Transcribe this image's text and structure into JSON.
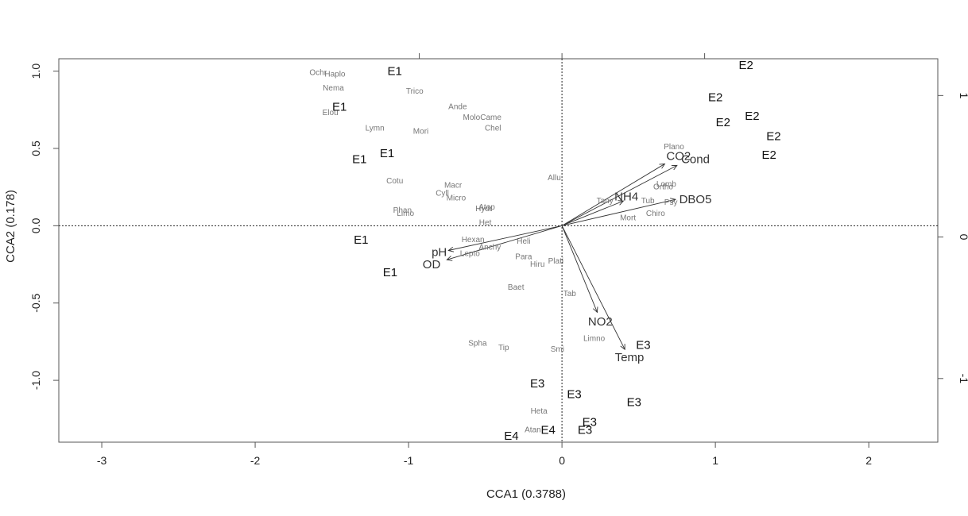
{
  "chart_data": {
    "type": "scatter",
    "xlabel": "CCA1 (0.3788)",
    "ylabel": "CCA2 (0.178)",
    "xlim": [
      -3.28,
      2.45
    ],
    "ylim": [
      -1.4,
      1.08
    ],
    "xticks": [
      -3,
      -2,
      -1,
      0,
      1,
      2
    ],
    "xtick_labels": [
      "-3",
      "-2",
      "-1",
      "0",
      "1",
      "2"
    ],
    "yticks": [
      -1.0,
      -0.5,
      0.0,
      0.5,
      1.0
    ],
    "ytick_labels": [
      "-1.0",
      "-0.5",
      "0.0",
      "0.5",
      "1.0"
    ],
    "top_axis_ticks": [
      -0.93,
      0,
      0.93
    ],
    "right_axis": {
      "ylim": [
        -1.45,
        1.26
      ],
      "ticks": [
        -1,
        0,
        1
      ],
      "tick_labels": [
        "-1",
        "0",
        "1"
      ]
    },
    "grid": false,
    "species": [
      {
        "label": "Ochr",
        "x": -1.59,
        "y": 0.99
      },
      {
        "label": "Haplo",
        "x": -1.48,
        "y": 0.98
      },
      {
        "label": "Nema",
        "x": -1.49,
        "y": 0.89
      },
      {
        "label": "Trico",
        "x": -0.96,
        "y": 0.87
      },
      {
        "label": "Ande",
        "x": -0.68,
        "y": 0.77
      },
      {
        "label": "MoloCame",
        "x": -0.52,
        "y": 0.7
      },
      {
        "label": "Chel",
        "x": -0.45,
        "y": 0.63
      },
      {
        "label": "Elou",
        "x": -1.51,
        "y": 0.73
      },
      {
        "label": "Lymn",
        "x": -1.22,
        "y": 0.63
      },
      {
        "label": "Mori",
        "x": -0.92,
        "y": 0.61
      },
      {
        "label": "Plano",
        "x": 0.73,
        "y": 0.51
      },
      {
        "label": "Allu",
        "x": -0.05,
        "y": 0.31
      },
      {
        "label": "Cotu",
        "x": -1.09,
        "y": 0.29
      },
      {
        "label": "Macr",
        "x": -0.71,
        "y": 0.26
      },
      {
        "label": "Cyll",
        "x": -0.78,
        "y": 0.21
      },
      {
        "label": "Micro",
        "x": -0.69,
        "y": 0.18
      },
      {
        "label": "Atop",
        "x": -0.49,
        "y": 0.12
      },
      {
        "label": "Hydr",
        "x": -0.51,
        "y": 0.11
      },
      {
        "label": "Lomb",
        "x": 0.68,
        "y": 0.27
      },
      {
        "label": "Ortho",
        "x": 0.66,
        "y": 0.25
      },
      {
        "label": "Tany",
        "x": 0.28,
        "y": 0.16
      },
      {
        "label": "Tub",
        "x": 0.56,
        "y": 0.16
      },
      {
        "label": "Psy",
        "x": 0.71,
        "y": 0.15
      },
      {
        "label": "Chiro",
        "x": 0.61,
        "y": 0.08
      },
      {
        "label": "Mort",
        "x": 0.43,
        "y": 0.05
      },
      {
        "label": "Phan",
        "x": -1.04,
        "y": 0.1
      },
      {
        "label": "Limo",
        "x": -1.02,
        "y": 0.08
      },
      {
        "label": "Het",
        "x": -0.5,
        "y": 0.02
      },
      {
        "label": "Hexan",
        "x": -0.58,
        "y": -0.09
      },
      {
        "label": "Heli",
        "x": -0.25,
        "y": -0.1
      },
      {
        "label": "Anchy",
        "x": -0.47,
        "y": -0.14
      },
      {
        "label": "Lepto",
        "x": -0.6,
        "y": -0.18
      },
      {
        "label": "Para",
        "x": -0.25,
        "y": -0.2
      },
      {
        "label": "Hiru",
        "x": -0.16,
        "y": -0.25
      },
      {
        "label": "Plati",
        "x": -0.04,
        "y": -0.23
      },
      {
        "label": "Baet",
        "x": -0.3,
        "y": -0.4
      },
      {
        "label": "Tab",
        "x": 0.05,
        "y": -0.44
      },
      {
        "label": "Limno",
        "x": 0.21,
        "y": -0.73
      },
      {
        "label": "Spha",
        "x": -0.55,
        "y": -0.76
      },
      {
        "label": "Tip",
        "x": -0.38,
        "y": -0.79
      },
      {
        "label": "Smi",
        "x": -0.03,
        "y": -0.8
      },
      {
        "label": "Heta",
        "x": -0.15,
        "y": -1.2
      },
      {
        "label": "Atan",
        "x": -0.19,
        "y": -1.32
      }
    ],
    "sites": [
      {
        "label": "E1",
        "x": -1.09,
        "y": 1.0
      },
      {
        "label": "E1",
        "x": -1.45,
        "y": 0.77
      },
      {
        "label": "E1",
        "x": -1.14,
        "y": 0.47
      },
      {
        "label": "E1",
        "x": -1.32,
        "y": 0.43
      },
      {
        "label": "E1",
        "x": -1.31,
        "y": -0.09
      },
      {
        "label": "E1",
        "x": -1.12,
        "y": -0.3
      },
      {
        "label": "E2",
        "x": 1.2,
        "y": 1.04
      },
      {
        "label": "E2",
        "x": 1.0,
        "y": 0.83
      },
      {
        "label": "E2",
        "x": 1.05,
        "y": 0.67
      },
      {
        "label": "E2",
        "x": 1.24,
        "y": 0.71
      },
      {
        "label": "E2",
        "x": 1.38,
        "y": 0.58
      },
      {
        "label": "E2",
        "x": 1.35,
        "y": 0.46
      },
      {
        "label": "E3",
        "x": 0.53,
        "y": -0.77
      },
      {
        "label": "E3",
        "x": -0.16,
        "y": -1.02
      },
      {
        "label": "E3",
        "x": 0.08,
        "y": -1.09
      },
      {
        "label": "E3",
        "x": 0.47,
        "y": -1.14
      },
      {
        "label": "E3",
        "x": 0.18,
        "y": -1.27
      },
      {
        "label": "E3",
        "x": 0.15,
        "y": -1.32
      },
      {
        "label": "E4",
        "x": -0.33,
        "y": -1.36
      },
      {
        "label": "E4",
        "x": -0.09,
        "y": -1.32
      }
    ],
    "env_vectors": [
      {
        "label": "CO2",
        "x": 0.67,
        "y": 0.4,
        "lx": 0.76,
        "ly": 0.45
      },
      {
        "label": "Cond",
        "x": 0.75,
        "y": 0.39,
        "lx": 0.87,
        "ly": 0.43
      },
      {
        "label": "NH4",
        "x": 0.4,
        "y": 0.16,
        "lx": 0.42,
        "ly": 0.19
      },
      {
        "label": "DBO5",
        "x": 0.74,
        "y": 0.17,
        "lx": 0.87,
        "ly": 0.17
      },
      {
        "label": "pH",
        "x": -0.74,
        "y": -0.16,
        "lx": -0.8,
        "ly": -0.17
      },
      {
        "label": "OD",
        "x": -0.75,
        "y": -0.22,
        "lx": -0.85,
        "ly": -0.25
      },
      {
        "label": "NO2",
        "x": 0.23,
        "y": -0.56,
        "lx": 0.25,
        "ly": -0.62
      },
      {
        "label": "Temp",
        "x": 0.41,
        "y": -0.8,
        "lx": 0.44,
        "ly": -0.85
      }
    ]
  }
}
